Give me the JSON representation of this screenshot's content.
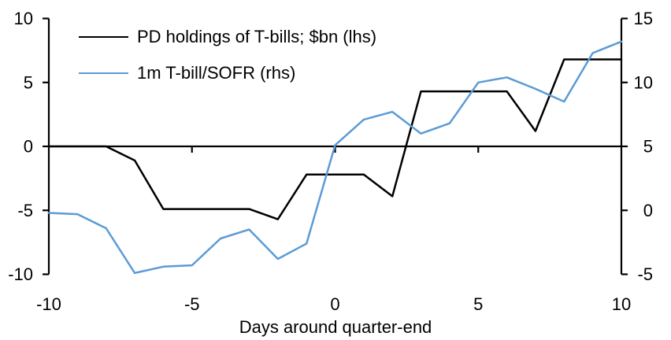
{
  "chart_data": {
    "type": "line",
    "title": "",
    "xlabel": "Days around quarter-end",
    "background": "#ffffff",
    "grid": false,
    "x": [
      -10,
      -9,
      -8,
      -7,
      -6,
      -5,
      -4,
      -3,
      -2,
      -1,
      0,
      1,
      2,
      3,
      4,
      5,
      6,
      7,
      8,
      9,
      10
    ],
    "series": [
      {
        "name": "PD holdings of T-bills; $bn (lhs)",
        "axis": "left",
        "color": "#000000",
        "values": [
          0,
          0,
          0,
          -1.1,
          -4.9,
          -4.9,
          -4.9,
          -4.9,
          -5.7,
          -2.2,
          -2.2,
          -2.2,
          -3.9,
          4.3,
          4.3,
          4.3,
          4.3,
          1.2,
          6.8,
          6.8,
          6.8
        ]
      },
      {
        "name": "1m T-bill/SOFR (rhs)",
        "axis": "right",
        "color": "#5B9BD5",
        "values": [
          -0.2,
          -0.3,
          -1.4,
          -4.9,
          -4.4,
          -4.3,
          -2.2,
          -1.5,
          -3.8,
          -2.6,
          5.1,
          7.1,
          7.7,
          6.0,
          6.8,
          10.0,
          10.4,
          9.5,
          8.5,
          12.3,
          13.2
        ]
      }
    ],
    "left_axis": {
      "min": -10,
      "max": 10,
      "ticks": [
        10,
        5,
        0,
        -5,
        -10
      ]
    },
    "right_axis": {
      "min": -5,
      "max": 15,
      "ticks": [
        15,
        10,
        5,
        0,
        -5
      ]
    },
    "x_axis": {
      "min": -10,
      "max": 10,
      "ticks": [
        -10,
        -5,
        0,
        5,
        10
      ],
      "zero_line_ticks": [
        -5,
        0,
        5
      ]
    },
    "legend": {
      "position": "top-left-inside"
    }
  }
}
